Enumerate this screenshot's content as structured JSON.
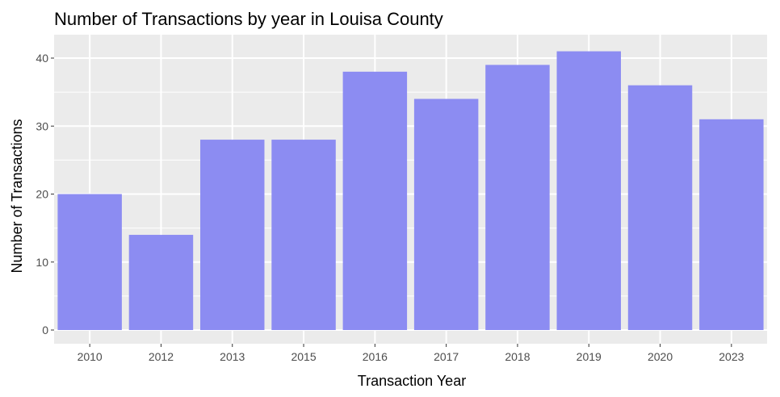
{
  "chart_data": {
    "type": "bar",
    "title": "Number of Transactions by year in Louisa County",
    "xlabel": "Transaction Year",
    "ylabel": "Number of Transactions",
    "categories": [
      "2010",
      "2012",
      "2013",
      "2015",
      "2016",
      "2017",
      "2018",
      "2019",
      "2020",
      "2023"
    ],
    "values": [
      20,
      14,
      28,
      28,
      38,
      34,
      39,
      41,
      36,
      31
    ],
    "ylim": [
      0,
      43
    ],
    "yticks": [
      0,
      10,
      20,
      30,
      40
    ],
    "grid": true,
    "legend": "none",
    "bar_color": "#8c8cf2",
    "panel_color": "#ebebeb",
    "grid_color": "#ffffff"
  }
}
